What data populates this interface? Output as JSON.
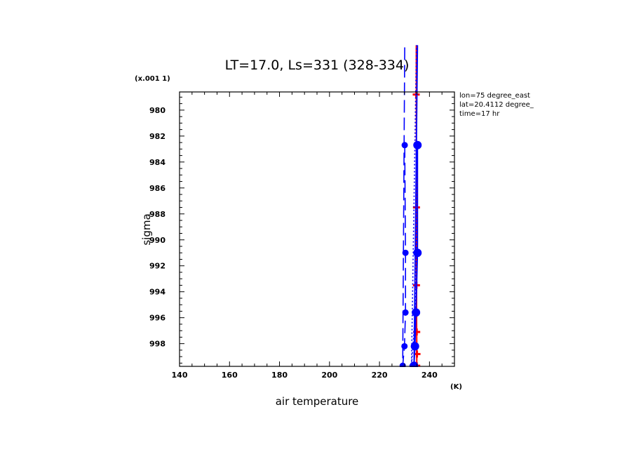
{
  "chart_data": {
    "type": "line",
    "title": "LT=17.0, Ls=331 (328-334)",
    "xlabel": "air temperature",
    "ylabel": "sigma",
    "x_unit": "(K)",
    "y_scale_label": "(x.001 1)",
    "xlim": [
      140,
      250
    ],
    "ylim": [
      999.75,
      978.6
    ],
    "y_inverted": true,
    "x_ticks": [
      "140",
      "160",
      "180",
      "200",
      "220",
      "240"
    ],
    "y_ticks": [
      "980",
      "982",
      "984",
      "986",
      "988",
      "990",
      "992",
      "994",
      "996",
      "998"
    ],
    "grid": false,
    "legend": "none",
    "annotations": [
      "lon=75 degree_east",
      "lat=20.4112 degree_",
      "time=17 hr"
    ],
    "series": [
      {
        "color": "#ff0000",
        "style": "solid",
        "marker": "plus",
        "x": [
          234.7,
          234.8,
          234.8,
          234.9,
          235.0,
          234.9,
          234.7
        ],
        "y": [
          978.8,
          987.5,
          993.5,
          997.1,
          998.8,
          999.7,
          975
        ]
      },
      {
        "color": "#0000ff",
        "style": "solid",
        "marker": "dot-large",
        "x": [
          235.2,
          235.2,
          234.6,
          234.2,
          233.8,
          235.2
        ],
        "y": [
          982.7,
          991.0,
          995.6,
          998.2,
          999.7,
          975
        ]
      },
      {
        "color": "#0000ff",
        "style": "dotted",
        "marker": "dot-small",
        "x": [
          234.8,
          234.8,
          234.3,
          233.4,
          232.8,
          234.8
        ],
        "y": [
          982.7,
          991.0,
          995.6,
          998.2,
          999.7,
          975
        ]
      },
      {
        "color": "#0000ff",
        "style": "dashed",
        "marker": "dot-medium",
        "x": [
          230.1,
          230.4,
          230.4,
          230.0,
          229.3,
          230.1
        ],
        "y": [
          982.7,
          991.0,
          995.6,
          998.2,
          999.7,
          975
        ]
      }
    ]
  }
}
